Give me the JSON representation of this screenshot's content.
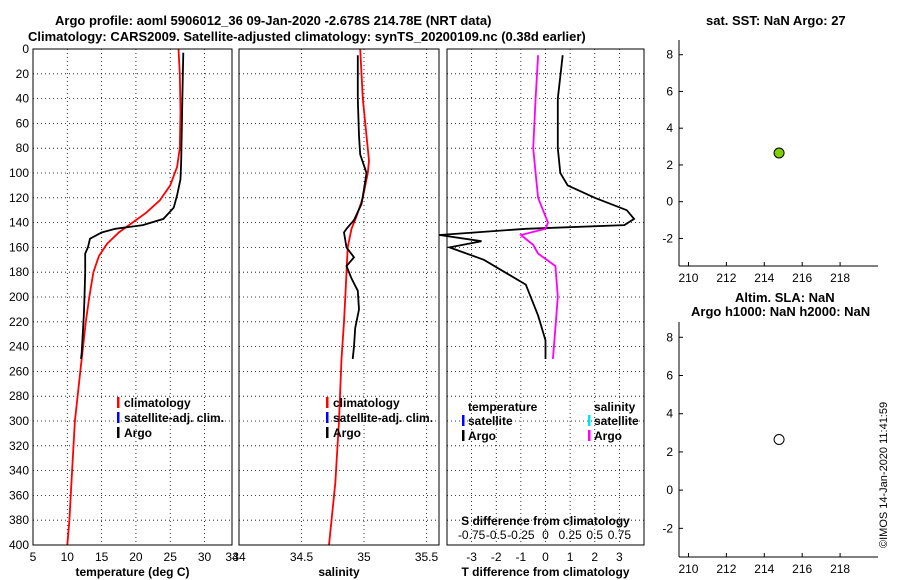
{
  "titles": {
    "line1": "Argo profile: aoml 5906012_36 09-Jan-2020 -2.678S 214.78E (NRT data)",
    "line2": "Climatology: CARS2009. Satellite-adjusted climatology: synTS_20200109.nc (0.38d earlier)",
    "sst": "sat. SST: NaN Argo: 27",
    "sla1": "Altim. SLA: NaN",
    "sla2": "Argo h1000: NaN h2000: NaN",
    "timestamp": "©IMOS 14-Jan-2020 11:41:59"
  },
  "colors": {
    "climatology": "#ff0000",
    "satellite": "#0000ff",
    "argo": "#000000",
    "salinity_sat": "#00e5ee",
    "salinity_argo": "#ff00ff",
    "dot_fill": "#80d000"
  },
  "chart_data": [
    {
      "type": "line",
      "id": "temperature",
      "xlabel": "temperature (deg C)",
      "ylim": [
        0,
        400
      ],
      "xlim": [
        5,
        34
      ],
      "xticks": [
        5,
        10,
        15,
        20,
        25,
        30,
        34
      ],
      "yticks": [
        0,
        20,
        40,
        60,
        80,
        100,
        120,
        140,
        160,
        180,
        200,
        220,
        240,
        260,
        280,
        300,
        320,
        340,
        360,
        380,
        400
      ],
      "legend": [
        "climatology",
        "satellite-adj. clim.",
        "Argo"
      ],
      "series": [
        {
          "name": "climatology",
          "color": "#ff0000",
          "x": [
            26.2,
            26.4,
            26.5,
            26.4,
            26.0,
            25.0,
            23.5,
            21.5,
            19.5,
            17.5,
            15.8,
            14.6,
            13.8,
            13.2,
            12.7,
            12.3,
            11.9,
            11.5,
            11.1,
            10.7,
            10.3,
            10.0
          ],
          "y": [
            0,
            20,
            50,
            80,
            95,
            110,
            122,
            132,
            140,
            148,
            157,
            167,
            180,
            200,
            220,
            240,
            260,
            280,
            300,
            340,
            380,
            400
          ]
        },
        {
          "name": "Argo",
          "color": "#000000",
          "x": [
            26.9,
            26.8,
            26.7,
            26.6,
            26.5,
            26.0,
            25.5,
            24.0,
            21.0,
            17.0,
            15.0,
            13.3,
            13.0,
            12.6,
            12.6,
            12.5,
            12.4,
            12.3,
            12.2,
            12.1,
            12.0
          ],
          "y": [
            3,
            30,
            60,
            90,
            105,
            118,
            128,
            137,
            142,
            145,
            148,
            153,
            160,
            165,
            180,
            200,
            215,
            225,
            235,
            245,
            250
          ]
        }
      ]
    },
    {
      "type": "line",
      "id": "salinity",
      "xlabel": "salinity",
      "ylim": [
        0,
        400
      ],
      "xlim": [
        34,
        35.6
      ],
      "xticks": [
        34,
        34.5,
        35,
        35.5
      ],
      "legend": [
        "climatology",
        "satellite-adj. clim.",
        "Argo"
      ],
      "series": [
        {
          "name": "climatology",
          "color": "#ff0000",
          "x": [
            34.97,
            34.99,
            35.02,
            35.04,
            35.03,
            34.99,
            34.94,
            34.9,
            34.87,
            34.86,
            34.85,
            34.84,
            34.82,
            34.8,
            34.77,
            34.72
          ],
          "y": [
            0,
            40,
            70,
            90,
            100,
            120,
            135,
            145,
            160,
            180,
            200,
            220,
            250,
            300,
            350,
            400
          ]
        },
        {
          "name": "Argo",
          "color": "#000000",
          "x": [
            34.95,
            34.95,
            34.96,
            34.97,
            35.02,
            35.0,
            34.98,
            34.92,
            34.86,
            34.84,
            34.86,
            34.92,
            34.86,
            34.9,
            34.95,
            34.96,
            34.93,
            34.92,
            34.91
          ],
          "y": [
            5,
            40,
            70,
            85,
            100,
            113,
            125,
            138,
            145,
            148,
            160,
            168,
            175,
            185,
            195,
            210,
            225,
            240,
            250
          ]
        }
      ]
    },
    {
      "type": "line",
      "id": "difference",
      "xlabel": "T difference from climatology",
      "xlabel2": "S difference from climatology",
      "ylim": [
        0,
        400
      ],
      "xlim": [
        -4,
        4
      ],
      "xticks": [
        -3,
        -2,
        -1,
        0,
        1,
        2,
        3
      ],
      "xticks2": [
        "-0.75",
        "-0.5",
        "-0.25",
        "0",
        "0.25",
        "0.5",
        "0.75"
      ],
      "legend": [
        "temperature",
        "satellite",
        "Argo",
        "salinity",
        "satellite",
        "Argo"
      ],
      "series": [
        {
          "name": "T Argo",
          "color": "#000000",
          "x": [
            0.7,
            0.5,
            0.5,
            0.6,
            0.9,
            2.0,
            3.3,
            3.6,
            3.2,
            -0.8,
            -4.3,
            -2.6,
            -3.9,
            -2.5,
            -0.8,
            -0.3,
            0.0,
            0.0
          ],
          "y": [
            5,
            40,
            80,
            100,
            110,
            120,
            130,
            137,
            142,
            145,
            150,
            155,
            160,
            170,
            190,
            215,
            235,
            250
          ]
        },
        {
          "name": "S salinity Argo",
          "color": "#ff00ff",
          "x": [
            -0.3,
            -0.4,
            -0.5,
            -0.4,
            -0.3,
            0.0,
            0.1,
            0.0,
            -1.0,
            -0.5,
            -0.3,
            0.4,
            0.5,
            0.4,
            0.3
          ],
          "y": [
            5,
            40,
            80,
            100,
            120,
            135,
            140,
            145,
            150,
            158,
            165,
            175,
            200,
            225,
            250
          ]
        }
      ]
    },
    {
      "type": "scatter",
      "id": "sst-map",
      "title": "sat. SST: NaN Argo: 27",
      "xlim": [
        209.5,
        220
      ],
      "ylim": [
        -3.5,
        8.8
      ],
      "xticks": [
        210,
        212,
        214,
        216,
        218
      ],
      "yticks": [
        -2,
        0,
        2,
        4,
        6,
        8
      ],
      "points": [
        {
          "x": 214.78,
          "y": 2.65,
          "fill": "#80d000"
        }
      ]
    },
    {
      "type": "scatter",
      "id": "sla-map",
      "title": "Altim. SLA: NaN / Argo h1000: NaN h2000: NaN",
      "xlim": [
        209.5,
        220
      ],
      "ylim": [
        -3.5,
        8.8
      ],
      "xticks": [
        210,
        212,
        214,
        216,
        218
      ],
      "yticks": [
        -2,
        0,
        2,
        4,
        6,
        8
      ],
      "points": [
        {
          "x": 214.78,
          "y": 2.65,
          "fill": "#ffffff"
        }
      ]
    }
  ]
}
